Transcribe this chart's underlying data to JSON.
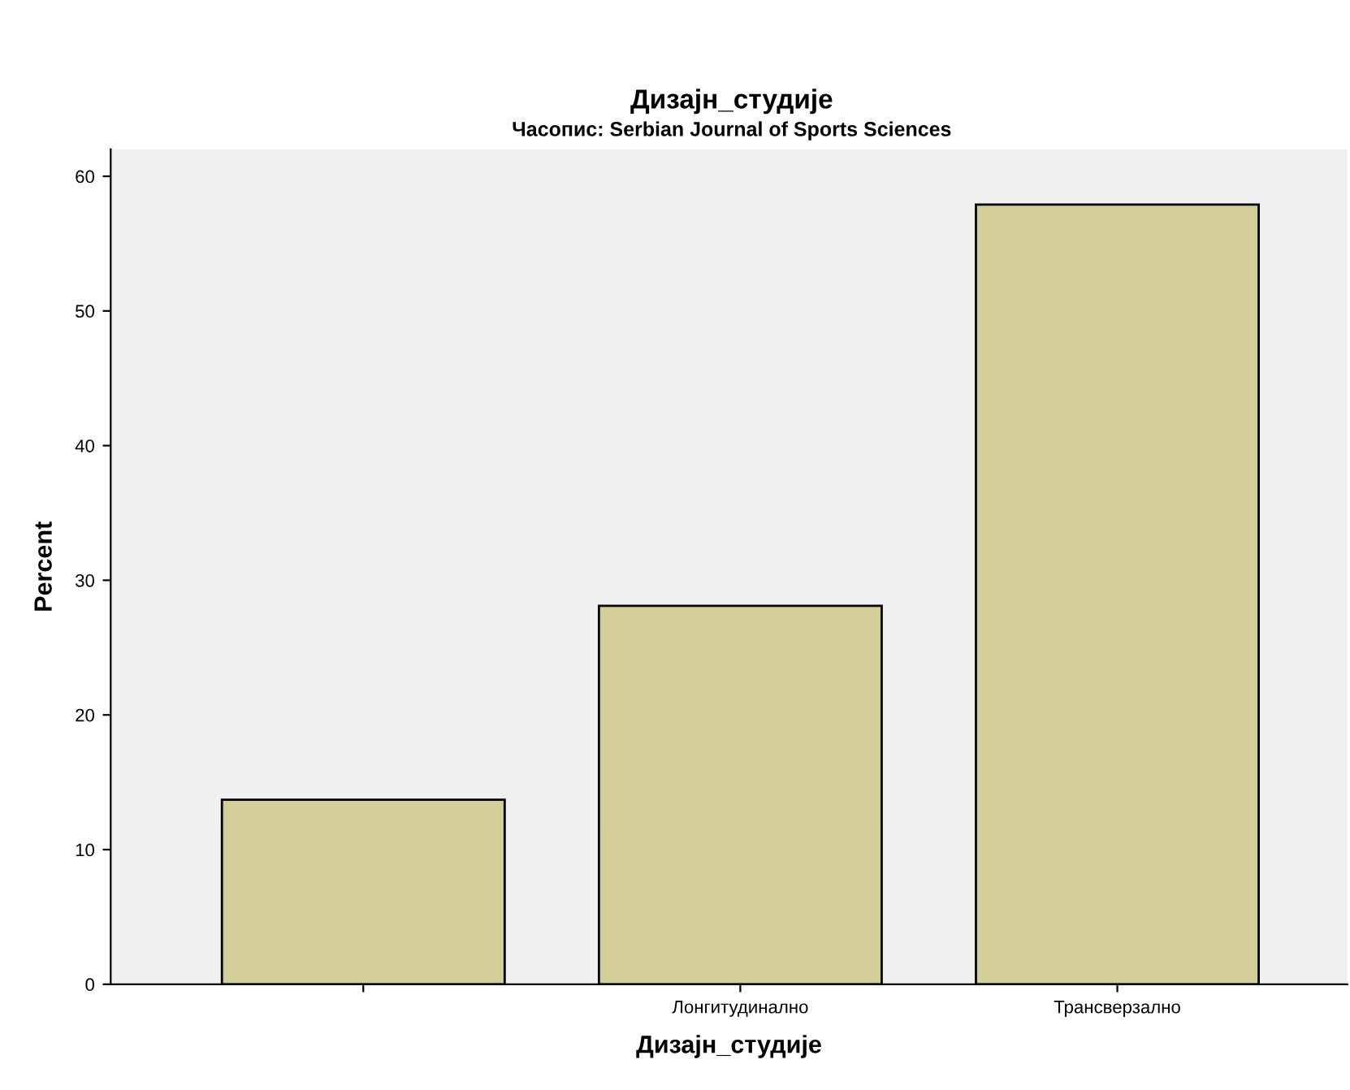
{
  "chart_data": {
    "type": "bar",
    "title": "Дизајн_студије",
    "subtitle": "Часопис: Serbian Journal of Sports Sciences",
    "xlabel": "Дизајн_студије",
    "ylabel": "Percent",
    "categories": [
      null,
      "Лонгитудинално",
      "Трансверзално"
    ],
    "values": [
      13.7,
      28.1,
      57.9
    ],
    "color": "#d3ce98",
    "ylim": [
      0,
      62
    ],
    "yticks": [
      0,
      10,
      20,
      30,
      40,
      50,
      60
    ],
    "grid": false,
    "legend": false
  }
}
